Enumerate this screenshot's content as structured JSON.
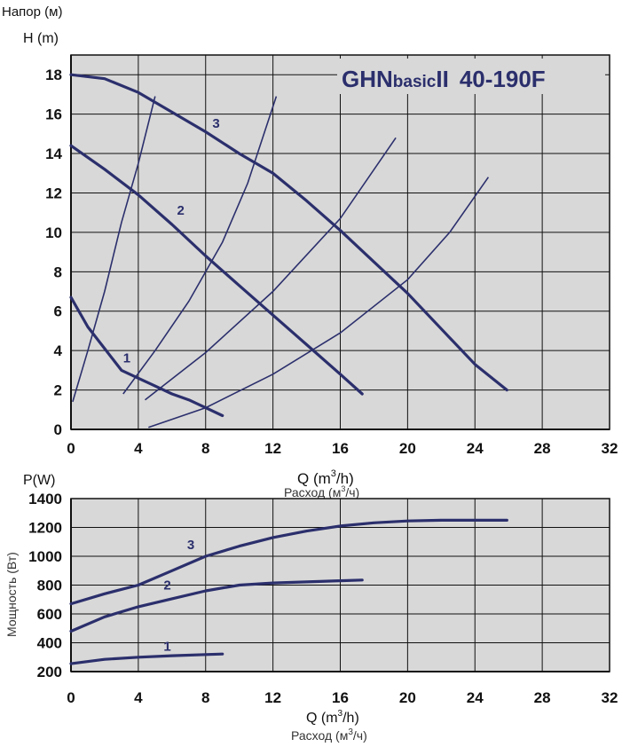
{
  "colors": {
    "curve": "#2b2f6c",
    "grid": "#111111",
    "plot_bg": "#d8d8d8"
  },
  "chart_data": [
    {
      "type": "line",
      "title": "GHNbasicII 40-190F",
      "title_parts": {
        "brand": "GHN",
        "suffix": "basic",
        "numeral": "II",
        "model": "40-190F"
      },
      "ylabel_ru": "Напор (м)",
      "ylabel": "H (m)",
      "xlabel": "Q (m³/h)",
      "xlabel_base": "Q (m",
      "xlabel_sup": "3",
      "xlabel_tail": "/h)",
      "xlabel_ru": "Расход (м³/ч)",
      "xlabel_ru_base": "Расход (м",
      "xlabel_ru_sup": "3",
      "xlabel_ru_tail": "/ч)",
      "xlim": [
        0,
        32
      ],
      "ylim": [
        0,
        19
      ],
      "xticks": [
        "0",
        "4",
        "8",
        "12",
        "16",
        "20",
        "24",
        "28",
        "32"
      ],
      "yticks": [
        "0",
        "2",
        "4",
        "6",
        "8",
        "10",
        "12",
        "14",
        "16",
        "18"
      ],
      "grid": true,
      "series": [
        {
          "name": "1",
          "x": [
            0,
            1,
            2,
            3,
            4,
            5,
            6,
            7,
            8,
            9
          ],
          "y": [
            6.7,
            5.2,
            4.1,
            3.0,
            2.6,
            2.2,
            1.8,
            1.5,
            1.1,
            0.7
          ]
        },
        {
          "name": "2",
          "x": [
            0,
            2,
            4,
            6,
            8,
            10,
            12,
            14,
            16,
            17.3
          ],
          "y": [
            14.4,
            13.2,
            11.9,
            10.4,
            8.8,
            7.3,
            5.8,
            4.3,
            2.8,
            1.8
          ]
        },
        {
          "name": "3",
          "x": [
            0,
            2,
            4,
            6,
            8,
            10,
            12,
            14,
            16,
            18,
            20,
            22,
            24,
            25.9
          ],
          "y": [
            18.0,
            17.8,
            17.1,
            16.1,
            15.1,
            14.0,
            13.0,
            11.6,
            10.1,
            8.5,
            6.9,
            5.1,
            3.3,
            2.0
          ]
        }
      ],
      "system_curves": [
        {
          "x": [
            0.1,
            1,
            2,
            3,
            4,
            5
          ],
          "y": [
            1.4,
            4.0,
            7.0,
            10.5,
            13.5,
            16.9
          ]
        },
        {
          "x": [
            3.1,
            5,
            7,
            9,
            10.5,
            12.2
          ],
          "y": [
            1.8,
            4.0,
            6.5,
            9.5,
            12.5,
            16.9
          ]
        },
        {
          "x": [
            4.4,
            8,
            12,
            16,
            19.3
          ],
          "y": [
            1.5,
            3.9,
            7.0,
            10.7,
            14.8
          ]
        },
        {
          "x": [
            4.6,
            8,
            12,
            16,
            20,
            22.5,
            24.8
          ],
          "y": [
            0.1,
            1.1,
            2.8,
            4.9,
            7.6,
            10.0,
            12.8
          ]
        }
      ],
      "curve_labels": [
        "1",
        "2",
        "3"
      ]
    },
    {
      "type": "line",
      "ylabel": "P(W)",
      "ylabel_ru": "Мощность (Вт)",
      "xlabel": "Q (m³/h)",
      "xlabel_base": "Q (m",
      "xlabel_sup": "3",
      "xlabel_tail": "/h)",
      "xlabel_ru": "Расход (м³/ч)",
      "xlabel_ru_base": "Расход (м",
      "xlabel_ru_sup": "3",
      "xlabel_ru_tail": "/ч)",
      "xlim": [
        0,
        32
      ],
      "ylim": [
        200,
        1400
      ],
      "xticks": [
        "0",
        "4",
        "8",
        "12",
        "16",
        "20",
        "24",
        "28",
        "32"
      ],
      "yticks": [
        "200",
        "400",
        "600",
        "800",
        "1000",
        "1200",
        "1400"
      ],
      "grid": true,
      "series": [
        {
          "name": "1",
          "x": [
            0,
            2,
            4,
            6,
            8,
            9
          ],
          "y": [
            255,
            285,
            300,
            310,
            318,
            322
          ]
        },
        {
          "name": "2",
          "x": [
            0,
            2,
            4,
            6,
            8,
            10,
            12,
            14,
            16,
            17.3
          ],
          "y": [
            480,
            580,
            650,
            705,
            760,
            800,
            815,
            822,
            830,
            835
          ]
        },
        {
          "name": "3",
          "x": [
            0,
            2,
            4,
            6,
            8,
            10,
            12,
            14,
            16,
            18,
            20,
            22,
            24,
            25.9
          ],
          "y": [
            670,
            740,
            800,
            900,
            1000,
            1070,
            1130,
            1175,
            1210,
            1232,
            1245,
            1250,
            1250,
            1250
          ]
        }
      ],
      "curve_labels": [
        "1",
        "2",
        "3"
      ]
    }
  ]
}
